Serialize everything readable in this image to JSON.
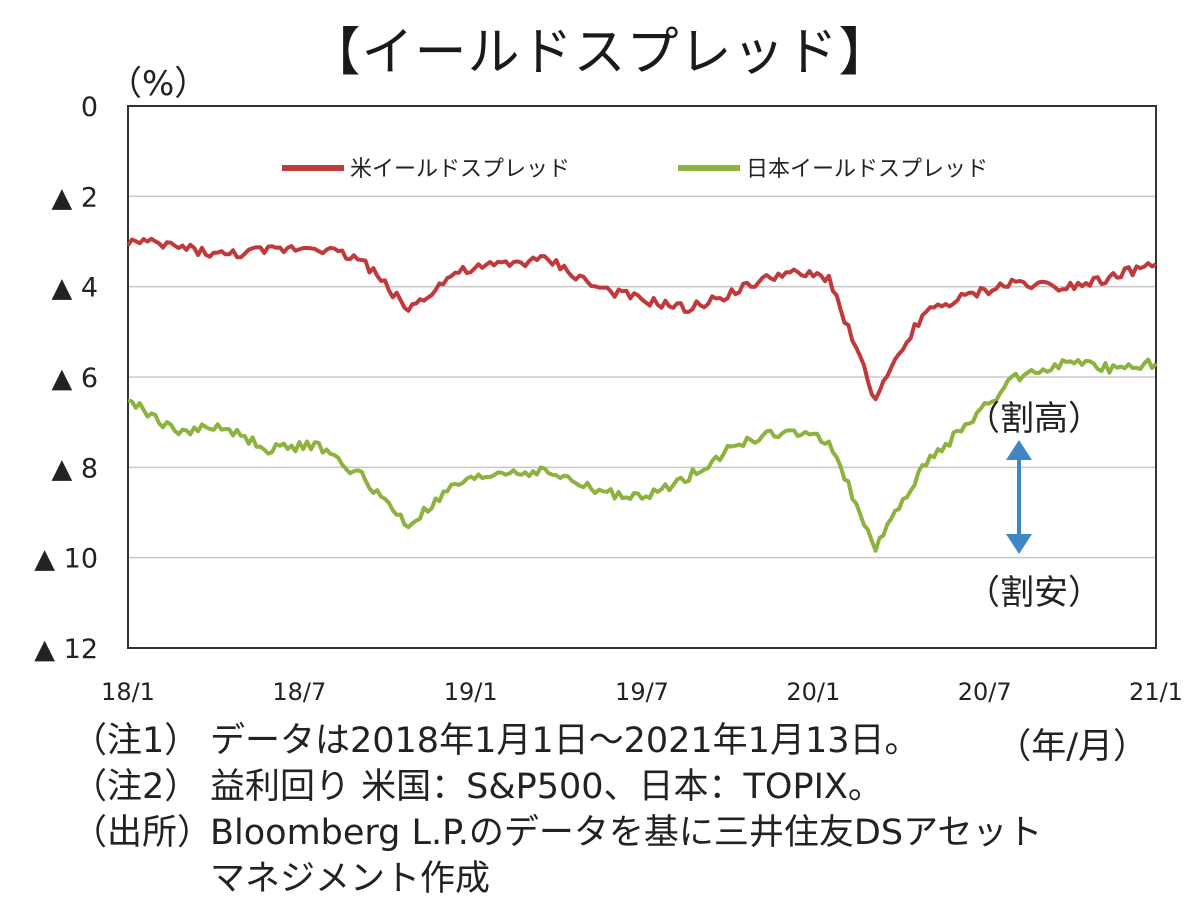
{
  "chart_data": {
    "type": "line",
    "title": "【イールドスプレッド】",
    "ylabel": "（%）",
    "y_tick_labels": [
      "0",
      "▲ 2",
      "▲ 4",
      "▲ 6",
      "▲ 8",
      "▲ 10",
      "▲ 12"
    ],
    "y_tick_values": [
      0,
      -2,
      -4,
      -6,
      -8,
      -10,
      -12
    ],
    "ylim": [
      -12,
      0
    ],
    "x_tick_labels": [
      "18/1",
      "18/7",
      "19/1",
      "19/7",
      "20/1",
      "20/7",
      "21/1"
    ],
    "xlabel": "（年/月）",
    "grid": true,
    "legend_position": "top",
    "x": [
      "18/1",
      "18/3",
      "18/5",
      "18/7",
      "18/9",
      "18/11",
      "18/12",
      "19/1",
      "19/3",
      "19/5",
      "19/7",
      "19/8",
      "19/9",
      "19/11",
      "20/1",
      "20/2",
      "20/3",
      "20/4",
      "20/5",
      "20/7",
      "20/9",
      "20/11",
      "21/1"
    ],
    "series": [
      {
        "name": "米イールドスプレッド",
        "color": "#c0393b",
        "values": [
          -3.0,
          -3.1,
          -3.3,
          -3.2,
          -3.1,
          -3.4,
          -4.5,
          -3.7,
          -3.5,
          -3.4,
          -4.0,
          -4.3,
          -4.5,
          -4.1,
          -3.7,
          -3.8,
          -6.5,
          -4.6,
          -4.2,
          -3.9,
          -4.0,
          -3.8,
          -3.5
        ]
      },
      {
        "name": "日本イールドスプレッド",
        "color": "#8db23f",
        "values": [
          -6.5,
          -7.2,
          -7.1,
          -7.6,
          -7.5,
          -8.2,
          -9.3,
          -8.4,
          -8.1,
          -8.1,
          -8.5,
          -8.7,
          -8.2,
          -7.5,
          -7.2,
          -7.4,
          -9.8,
          -8.0,
          -7.0,
          -6.0,
          -5.7,
          -5.8,
          -5.7
        ]
      }
    ],
    "annotations": [
      "（割高）",
      "（割安）"
    ]
  },
  "notes": [
    {
      "tag": "（注1）",
      "text": "データは2018年1月1日～2021年1月13日。"
    },
    {
      "tag": "（注2）",
      "text": "益利回り 米国：S&P500、日本：TOPIX。"
    },
    {
      "tag": "（出所）",
      "text": "Bloomberg L.P.のデータを基に三井住友DSアセット"
    },
    {
      "tag": "",
      "text": "マネジメント作成"
    }
  ]
}
